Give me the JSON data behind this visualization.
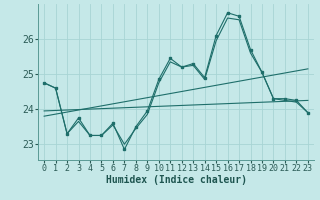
{
  "xlabel": "Humidex (Indice chaleur)",
  "bg_color": "#c5e8e8",
  "line_color": "#1e6e6a",
  "grid_color": "#a8d4d4",
  "xlim": [
    -0.5,
    23.5
  ],
  "ylim": [
    22.55,
    27.0
  ],
  "yticks": [
    23,
    24,
    25,
    26
  ],
  "xticks": [
    0,
    1,
    2,
    3,
    4,
    5,
    6,
    7,
    8,
    9,
    10,
    11,
    12,
    13,
    14,
    15,
    16,
    17,
    18,
    19,
    20,
    21,
    22,
    23
  ],
  "main_line_x": [
    0,
    1,
    2,
    3,
    4,
    5,
    6,
    7,
    8,
    9,
    10,
    11,
    12,
    13,
    14,
    15,
    16,
    17,
    18,
    19,
    20,
    21,
    22,
    23
  ],
  "main_line_y": [
    24.75,
    24.6,
    23.3,
    23.75,
    23.25,
    23.25,
    23.6,
    22.85,
    23.5,
    23.95,
    24.85,
    25.45,
    25.2,
    25.3,
    24.9,
    26.1,
    26.75,
    26.65,
    25.7,
    25.05,
    24.3,
    24.3,
    24.25,
    23.9
  ],
  "smooth_line_x": [
    0,
    1,
    2,
    3,
    4,
    5,
    6,
    7,
    8,
    9,
    10,
    11,
    12,
    13,
    14,
    15,
    16,
    17,
    18,
    19,
    20,
    21,
    22,
    23
  ],
  "smooth_line_y": [
    24.75,
    24.6,
    23.3,
    23.65,
    23.25,
    23.25,
    23.55,
    23.0,
    23.45,
    23.85,
    24.75,
    25.35,
    25.2,
    25.25,
    24.85,
    25.95,
    26.6,
    26.55,
    25.6,
    25.05,
    24.3,
    24.25,
    24.2,
    23.9
  ],
  "trend1_x": [
    0,
    23
  ],
  "trend1_y": [
    23.8,
    25.15
  ],
  "trend2_x": [
    0,
    23
  ],
  "trend2_y": [
    23.95,
    24.25
  ],
  "tick_fontsize": 6,
  "label_fontsize": 7
}
